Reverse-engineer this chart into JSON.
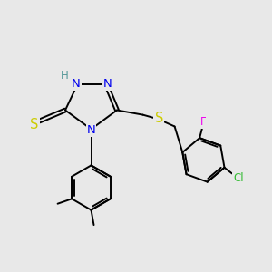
{
  "bg_color": "#e8e8e8",
  "bond_color": "#000000",
  "bond_width": 1.4,
  "atom_colors": {
    "N": "#0000ee",
    "S": "#cccc00",
    "Cl": "#33bb33",
    "F": "#ee00ee",
    "H_label": "#559999",
    "C": "#000000"
  },
  "font_size": 8.5
}
